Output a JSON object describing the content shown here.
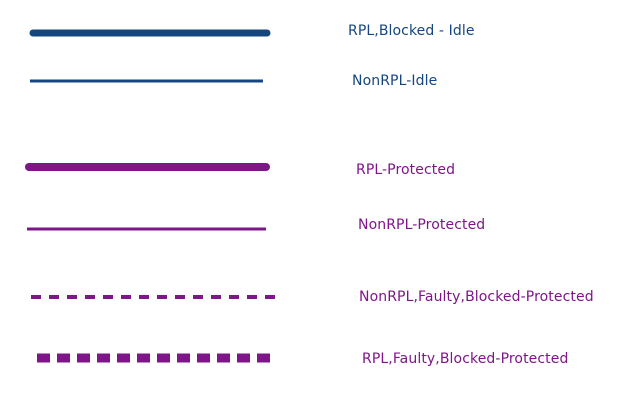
{
  "colors": {
    "blue": "#15467F",
    "purple": "#7E1588"
  },
  "legend": {
    "items": [
      {
        "label": "RPL,Blocked - Idle",
        "color": "blue",
        "line_style": "thick-solid"
      },
      {
        "label": "NonRPL-Idle",
        "color": "blue",
        "line_style": "thin-solid"
      },
      {
        "label": "RPL-Protected",
        "color": "purple",
        "line_style": "thick-solid"
      },
      {
        "label": "NonRPL-Protected",
        "color": "purple",
        "line_style": "thin-solid"
      },
      {
        "label": "NonRPL,Faulty,Blocked-Protected",
        "color": "purple",
        "line_style": "thin-dashed"
      },
      {
        "label": "RPL,Faulty,Blocked-Protected",
        "color": "purple",
        "line_style": "thick-dashed"
      }
    ]
  }
}
